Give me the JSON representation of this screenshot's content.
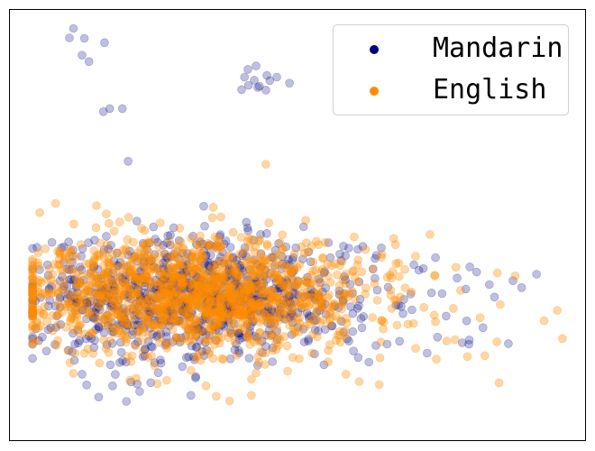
{
  "chart_data": {
    "type": "scatter",
    "title": "",
    "xlabel": "",
    "ylabel": "",
    "xlim": [
      0,
      100
    ],
    "ylim": [
      0,
      100
    ],
    "axes_ticks": false,
    "grid": false,
    "legend": {
      "placement": "top-right"
    },
    "series": [
      {
        "name": "Mandarin",
        "color": "#000080",
        "marker_opacity": 0.25,
        "points": [
          [
            11.1,
            95.6
          ],
          [
            10.4,
            93.4
          ],
          [
            13.0,
            93.3
          ],
          [
            16.5,
            92.3
          ],
          [
            12.6,
            89.4
          ],
          [
            13.8,
            87.9
          ],
          [
            16.3,
            76.3
          ],
          [
            17.4,
            77.0
          ],
          [
            19.6,
            77.0
          ],
          [
            20.6,
            64.8
          ],
          [
            40.8,
            84.3
          ],
          [
            42.8,
            86.9
          ],
          [
            44.7,
            84.7
          ],
          [
            41.4,
            86.1
          ],
          [
            42.5,
            83.6
          ],
          [
            43.4,
            82.2
          ],
          [
            41.5,
            82.4
          ],
          [
            45.2,
            83.5
          ],
          [
            46.4,
            84.3
          ],
          [
            40.3,
            81.4
          ],
          [
            43.1,
            81.9
          ],
          [
            48.6,
            82.9
          ],
          [
            44.5,
            81.3
          ],
          [
            70.2,
            40.8
          ],
          [
            75.1,
            34.1
          ],
          [
            77.7,
            37.7
          ],
          [
            79.9,
            40.3
          ],
          [
            81.1,
            39.1
          ],
          [
            83.3,
            36.2
          ],
          [
            84.2,
            33.3
          ],
          [
            87.4,
            37.1
          ],
          [
            88.9,
            35.5
          ],
          [
            91.5,
            38.6
          ],
          [
            82.2,
            26.2
          ],
          [
            86.6,
            22.5
          ],
          [
            75.8,
            28.9
          ],
          [
            72.5,
            20.3
          ],
          [
            68.0,
            31.1
          ],
          [
            62.4,
            18.2
          ],
          [
            58.6,
            23.6
          ],
          [
            74.3,
            24.0
          ],
          [
            78.6,
            22.7
          ],
          [
            14.2,
            23.7
          ],
          [
            12.6,
            15.4
          ],
          [
            17.9,
            12.7
          ],
          [
            22.6,
            11.4
          ],
          [
            20.3,
            9.1
          ],
          [
            21.1,
            13.6
          ],
          [
            31.5,
            10.5
          ],
          [
            15.5,
            10.1
          ],
          [
            13.4,
            12.9
          ]
        ],
        "cluster": {
          "center": [
            33,
            33
          ],
          "spread": [
            15,
            7
          ],
          "count": 950,
          "seed": 7
        }
      },
      {
        "name": "English",
        "color": "#ff8c00",
        "marker_opacity": 0.35,
        "points": [
          [
            44.5,
            64.1
          ],
          [
            5.0,
            34.5
          ],
          [
            8.9,
            39.6
          ],
          [
            12.4,
            45.5
          ],
          [
            15.1,
            54.5
          ],
          [
            16.8,
            52.6
          ],
          [
            9.6,
            42.2
          ],
          [
            6.1,
            31.1
          ],
          [
            6.5,
            27.6
          ],
          [
            8.4,
            26.8
          ],
          [
            10.5,
            18.1
          ],
          [
            13.6,
            21.3
          ],
          [
            11.1,
            15.6
          ],
          [
            20.9,
            14.0
          ],
          [
            25.2,
            17.4
          ],
          [
            35.9,
            10.3
          ],
          [
            34.1,
            12.7
          ],
          [
            31.5,
            16.3
          ],
          [
            27.3,
            14.0
          ],
          [
            38.2,
            9.2
          ],
          [
            42.0,
            10.5
          ],
          [
            48.3,
            16.1
          ],
          [
            58.4,
            15.4
          ],
          [
            60.7,
            13.7
          ],
          [
            64.2,
            13.0
          ],
          [
            74.1,
            18.9
          ],
          [
            75.9,
            23.1
          ],
          [
            70.5,
            21.4
          ],
          [
            79.5,
            19.5
          ],
          [
            85.0,
            13.4
          ],
          [
            82.5,
            19.7
          ],
          [
            73.8,
            38.2
          ],
          [
            77.5,
            40.2
          ],
          [
            84.7,
            38.9
          ],
          [
            87.8,
            38.2
          ],
          [
            85.2,
            31.6
          ],
          [
            92.8,
            27.8
          ],
          [
            95.1,
            30.2
          ],
          [
            84.6,
            22.9
          ],
          [
            81.7,
            28.5
          ],
          [
            60.4,
            40.8
          ],
          [
            66.3,
            37.7
          ],
          [
            69.8,
            34.5
          ],
          [
            61.8,
            44.3
          ],
          [
            57.8,
            41.6
          ],
          [
            52.5,
            36.4
          ],
          [
            55.3,
            38.2
          ],
          [
            47.1,
            42.9
          ]
        ],
        "cluster": {
          "center": [
            32,
            34
          ],
          "spread": [
            15,
            6.5
          ],
          "count": 1400,
          "seed": 11
        }
      }
    ]
  }
}
